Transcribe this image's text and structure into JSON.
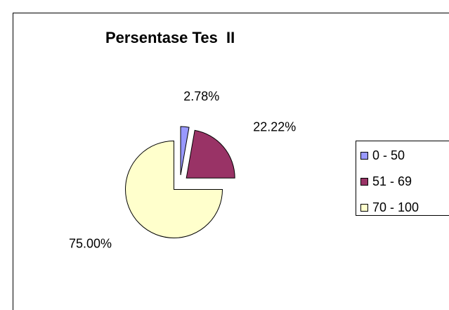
{
  "chart_data": {
    "type": "pie",
    "title": "Persentase Tes  II",
    "categories": [
      "0 - 50",
      "51 - 69",
      "70 - 100"
    ],
    "values": [
      2.78,
      22.22,
      75.0
    ],
    "value_labels": [
      "2.78%",
      "22.22%",
      "75.00%"
    ],
    "colors": [
      "#9999ff",
      "#993366",
      "#ffffcc"
    ],
    "legend": "right"
  }
}
